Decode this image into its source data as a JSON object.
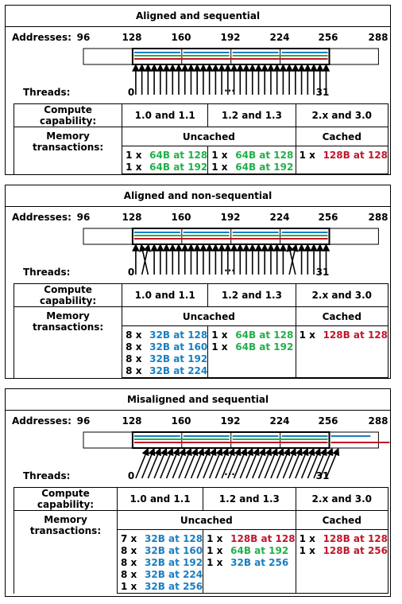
{
  "labels": {
    "addresses": "Addresses:",
    "threads": "Threads:",
    "thread_start": "0",
    "thread_dots": "···",
    "thread_end": "31",
    "compute_capability": "Compute capability:",
    "memory_transactions": "Memory transactions:",
    "cap_10_11": "1.0 and 1.1",
    "cap_12_13": "1.2 and 1.3",
    "cap_2x_30": "2.x and 3.0",
    "uncached": "Uncached",
    "cached": "Cached"
  },
  "address_ticks": [
    "96",
    "128",
    "160",
    "192",
    "224",
    "256",
    "288"
  ],
  "colors": {
    "blue": "#1a7fc1",
    "green": "#22b04a",
    "red": "#c0182a"
  },
  "panels": [
    {
      "title": "Aligned and sequential",
      "arrow_pattern": "sequential",
      "transactions": {
        "cap_10_11": [
          {
            "count": "1 x",
            "text": "64B at 128",
            "color": "green"
          },
          {
            "count": "1 x",
            "text": "64B at 192",
            "color": "green"
          }
        ],
        "cap_12_13": [
          {
            "count": "1 x",
            "text": "64B at 128",
            "color": "green"
          },
          {
            "count": "1 x",
            "text": "64B at 192",
            "color": "green"
          }
        ],
        "cap_2x_30": [
          {
            "count": "1 x",
            "text": "128B at 128",
            "color": "red"
          }
        ]
      }
    },
    {
      "title": "Aligned and non-sequential",
      "arrow_pattern": "non-sequential",
      "transactions": {
        "cap_10_11": [
          {
            "count": "8 x",
            "text": "32B at 128",
            "color": "blue"
          },
          {
            "count": "8 x",
            "text": "32B at 160",
            "color": "blue"
          },
          {
            "count": "8 x",
            "text": "32B at 192",
            "color": "blue"
          },
          {
            "count": "8 x",
            "text": "32B at 224",
            "color": "blue"
          }
        ],
        "cap_12_13": [
          {
            "count": "1 x",
            "text": "64B at 128",
            "color": "green"
          },
          {
            "count": "1 x",
            "text": "64B at 192",
            "color": "green"
          }
        ],
        "cap_2x_30": [
          {
            "count": "1 x",
            "text": "128B at 128",
            "color": "red"
          }
        ]
      }
    },
    {
      "title": "Misaligned and sequential",
      "arrow_pattern": "misaligned",
      "transactions": {
        "cap_10_11": [
          {
            "count": "7 x",
            "text": "32B at 128",
            "color": "blue"
          },
          {
            "count": "8 x",
            "text": "32B at 160",
            "color": "blue"
          },
          {
            "count": "8 x",
            "text": "32B at 192",
            "color": "blue"
          },
          {
            "count": "8 x",
            "text": "32B at 224",
            "color": "blue"
          },
          {
            "count": "1 x",
            "text": "32B at 256",
            "color": "blue"
          }
        ],
        "cap_12_13": [
          {
            "count": "1 x",
            "text": "128B at 128",
            "color": "red"
          },
          {
            "count": "1 x",
            "text": "64B at 192",
            "color": "green"
          },
          {
            "count": "1 x",
            "text": "32B at 256",
            "color": "blue"
          }
        ],
        "cap_2x_30": [
          {
            "count": "1 x",
            "text": "128B at 128",
            "color": "red"
          },
          {
            "count": "1 x",
            "text": "128B at 256",
            "color": "red"
          }
        ]
      }
    }
  ]
}
